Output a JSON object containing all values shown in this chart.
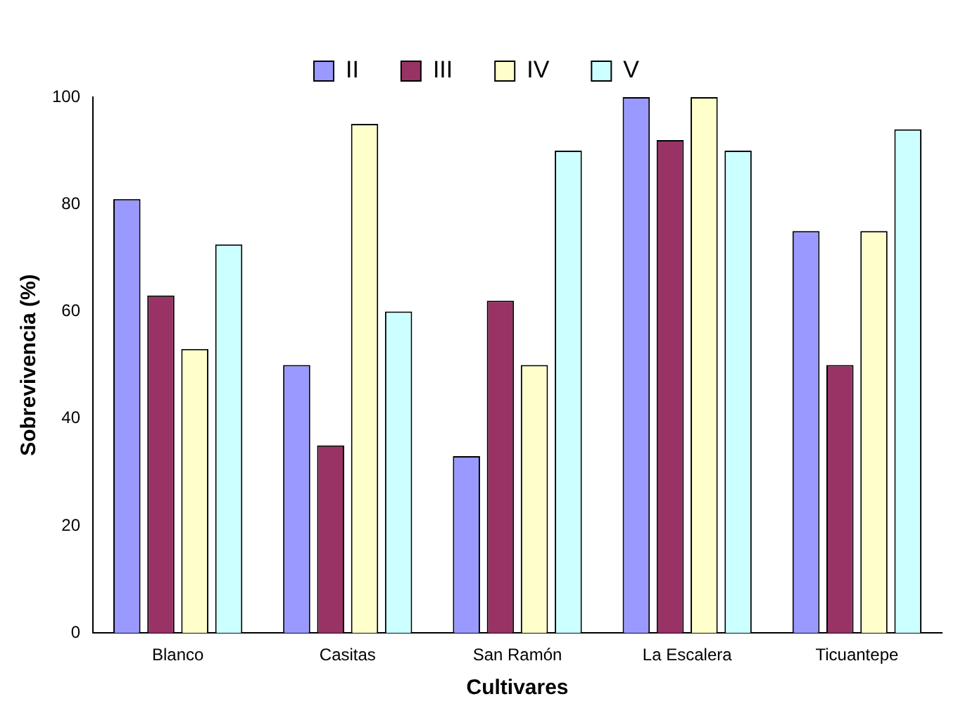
{
  "chart_data": {
    "type": "bar",
    "xlabel": "Cultivares",
    "ylabel": "Sobrevivencia (%)",
    "categories": [
      "Blanco",
      "Casitas",
      "San Ramón",
      "La Escalera",
      "Ticuantepe"
    ],
    "series": [
      {
        "name": "II",
        "color": "#9999ff",
        "values": [
          81,
          50,
          33,
          100,
          75
        ]
      },
      {
        "name": "III",
        "color": "#993366",
        "values": [
          63,
          35,
          62,
          92,
          50
        ]
      },
      {
        "name": "IV",
        "color": "#ffffcc",
        "values": [
          53,
          95,
          50,
          100,
          75
        ]
      },
      {
        "name": "V",
        "color": "#ccffff",
        "values": [
          72.5,
          60,
          90,
          90,
          94
        ]
      }
    ],
    "ylim": [
      0,
      100
    ],
    "yticks": [
      0,
      20,
      40,
      60,
      80,
      100
    ],
    "grid": false,
    "legend": "top"
  }
}
